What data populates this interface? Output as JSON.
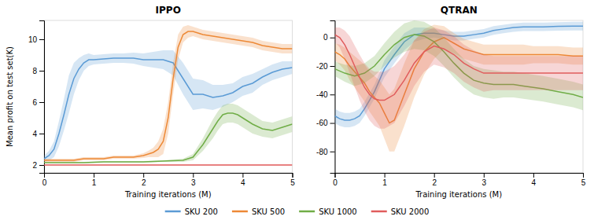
{
  "chart_data": [
    {
      "type": "line",
      "title": "IPPO",
      "xlabel": "Training iterations (M)",
      "ylabel": "Mean profit on test set(K)",
      "xlim": [
        0,
        5
      ],
      "xticks": [
        0,
        1,
        2,
        3,
        4,
        5
      ],
      "ylim": [
        1.5,
        11.2
      ],
      "yticks": [
        2,
        4,
        6,
        8,
        10
      ],
      "legend": "bottom",
      "series": [
        {
          "name": "SKU 200",
          "color": "#5b9bd5",
          "x": [
            0.0,
            0.1,
            0.2,
            0.3,
            0.4,
            0.5,
            0.6,
            0.7,
            0.8,
            0.9,
            1.0,
            1.2,
            1.4,
            1.6,
            1.8,
            2.0,
            2.2,
            2.4,
            2.5,
            2.6,
            2.7,
            2.8,
            2.9,
            3.0,
            3.2,
            3.4,
            3.6,
            3.8,
            4.0,
            4.2,
            4.4,
            4.6,
            4.8,
            5.0
          ],
          "values": [
            2.4,
            2.6,
            3.0,
            4.0,
            5.2,
            6.5,
            7.5,
            8.1,
            8.5,
            8.7,
            8.7,
            8.75,
            8.8,
            8.8,
            8.8,
            8.7,
            8.7,
            8.7,
            8.6,
            8.5,
            8.0,
            7.5,
            7.0,
            6.5,
            6.5,
            6.3,
            6.4,
            6.6,
            7.0,
            7.2,
            7.6,
            7.9,
            8.1,
            8.2
          ],
          "std": [
            0.2,
            0.3,
            0.5,
            0.8,
            1.0,
            1.2,
            1.0,
            0.7,
            0.5,
            0.4,
            0.3,
            0.3,
            0.3,
            0.3,
            0.35,
            0.4,
            0.5,
            0.6,
            0.7,
            0.8,
            0.9,
            1.0,
            1.0,
            1.0,
            0.9,
            0.8,
            0.7,
            0.6,
            0.6,
            0.6,
            0.5,
            0.5,
            0.5,
            0.4
          ]
        },
        {
          "name": "SKU 500",
          "color": "#ed8936",
          "x": [
            0.0,
            0.2,
            0.4,
            0.6,
            0.8,
            1.0,
            1.2,
            1.4,
            1.6,
            1.8,
            2.0,
            2.1,
            2.2,
            2.3,
            2.4,
            2.5,
            2.6,
            2.7,
            2.8,
            2.9,
            3.0,
            3.1,
            3.2,
            3.4,
            3.6,
            3.8,
            4.0,
            4.2,
            4.4,
            4.6,
            4.8,
            5.0
          ],
          "values": [
            2.3,
            2.3,
            2.3,
            2.3,
            2.4,
            2.4,
            2.4,
            2.5,
            2.5,
            2.5,
            2.6,
            2.7,
            2.8,
            3.0,
            3.5,
            5.0,
            7.5,
            9.5,
            10.3,
            10.5,
            10.5,
            10.4,
            10.3,
            10.2,
            10.1,
            10.0,
            9.9,
            9.8,
            9.6,
            9.5,
            9.4,
            9.4
          ],
          "std": [
            0.1,
            0.1,
            0.1,
            0.1,
            0.1,
            0.1,
            0.1,
            0.1,
            0.1,
            0.1,
            0.15,
            0.2,
            0.3,
            0.5,
            0.8,
            1.0,
            1.0,
            0.8,
            0.5,
            0.4,
            0.3,
            0.3,
            0.3,
            0.3,
            0.3,
            0.3,
            0.3,
            0.3,
            0.3,
            0.3,
            0.3,
            0.3
          ]
        },
        {
          "name": "SKU 1000",
          "color": "#70ad47",
          "x": [
            0.0,
            0.4,
            0.8,
            1.2,
            1.6,
            2.0,
            2.4,
            2.8,
            3.0,
            3.1,
            3.2,
            3.3,
            3.4,
            3.5,
            3.6,
            3.7,
            3.8,
            3.9,
            4.0,
            4.1,
            4.2,
            4.4,
            4.6,
            4.8,
            5.0
          ],
          "values": [
            2.15,
            2.15,
            2.15,
            2.2,
            2.2,
            2.2,
            2.25,
            2.3,
            2.5,
            2.9,
            3.3,
            3.8,
            4.3,
            4.8,
            5.2,
            5.3,
            5.3,
            5.2,
            5.0,
            4.8,
            4.6,
            4.3,
            4.2,
            4.4,
            4.6
          ],
          "std": [
            0.05,
            0.05,
            0.05,
            0.05,
            0.05,
            0.05,
            0.05,
            0.1,
            0.2,
            0.3,
            0.4,
            0.5,
            0.6,
            0.6,
            0.6,
            0.6,
            0.6,
            0.6,
            0.6,
            0.6,
            0.6,
            0.5,
            0.5,
            0.5,
            0.5
          ]
        },
        {
          "name": "SKU 2000",
          "color": "#e05c5c",
          "x": [
            0.0,
            2.5,
            5.0
          ],
          "values": [
            2.0,
            2.0,
            2.0
          ],
          "std": [
            0.01,
            0.01,
            0.01
          ]
        }
      ]
    },
    {
      "type": "line",
      "title": "QTRAN",
      "xlabel": "Training iterations (M)",
      "xlim": [
        0,
        5
      ],
      "xticks": [
        0,
        1,
        2,
        3,
        4,
        5
      ],
      "ylim": [
        -95,
        12
      ],
      "yticks": [
        -80,
        -60,
        -40,
        -20,
        0
      ],
      "series": [
        {
          "color": "#5b9bd5",
          "x": [
            0.0,
            0.1,
            0.2,
            0.3,
            0.4,
            0.5,
            0.6,
            0.7,
            0.8,
            0.9,
            1.0,
            1.2,
            1.4,
            1.6,
            1.8,
            2.0,
            2.2,
            2.4,
            2.6,
            2.8,
            3.0,
            3.2,
            3.4,
            3.6,
            3.8,
            4.0,
            4.2,
            4.5,
            4.8,
            5.0
          ],
          "values": [
            -55,
            -57,
            -58,
            -58,
            -57,
            -55,
            -50,
            -44,
            -38,
            -30,
            -22,
            -12,
            -3,
            2,
            3,
            3,
            2,
            1,
            1,
            2,
            3,
            5,
            6,
            7,
            7.5,
            7.5,
            7.5,
            7.8,
            8,
            8
          ],
          "std": [
            5,
            5,
            5,
            5,
            5,
            5,
            5,
            5,
            5,
            5,
            6,
            6,
            6,
            5,
            4,
            3,
            3,
            3,
            3,
            3,
            3,
            3,
            3,
            3,
            3,
            3,
            3,
            3,
            3,
            3
          ]
        },
        {
          "color": "#ed8936",
          "x": [
            0.0,
            0.1,
            0.2,
            0.3,
            0.5,
            0.6,
            0.7,
            0.8,
            0.9,
            1.0,
            1.1,
            1.2,
            1.4,
            1.6,
            1.8,
            2.0,
            2.2,
            2.4,
            2.6,
            2.8,
            3.0,
            3.2,
            3.5,
            3.8,
            4.0,
            4.2,
            4.5,
            4.8,
            5.0
          ],
          "values": [
            -10,
            -12,
            -15,
            -20,
            -28,
            -32,
            -38,
            -42,
            -46,
            -53,
            -60,
            -58,
            -40,
            -22,
            -10,
            -3,
            0,
            -4,
            -8,
            -10,
            -12,
            -12,
            -12,
            -12,
            -12,
            -12,
            -12,
            -13,
            -13
          ],
          "std": [
            6,
            7,
            8,
            10,
            12,
            13,
            14,
            15,
            16,
            18,
            20,
            22,
            22,
            20,
            16,
            12,
            8,
            7,
            7,
            7,
            7,
            7,
            7,
            7,
            6,
            6,
            6,
            6,
            6
          ]
        },
        {
          "color": "#70ad47",
          "x": [
            0.0,
            0.2,
            0.4,
            0.6,
            0.8,
            1.0,
            1.2,
            1.4,
            1.6,
            1.8,
            2.0,
            2.2,
            2.4,
            2.6,
            2.8,
            3.0,
            3.2,
            3.4,
            3.6,
            3.8,
            4.0,
            4.2,
            4.5,
            4.8,
            5.0
          ],
          "values": [
            -22,
            -25,
            -27,
            -25,
            -20,
            -12,
            -5,
            0,
            2,
            1,
            -3,
            -10,
            -18,
            -25,
            -30,
            -32,
            -33,
            -33,
            -33,
            -34,
            -35,
            -36,
            -38,
            -40,
            -42
          ],
          "std": [
            5,
            6,
            7,
            7,
            7,
            8,
            9,
            10,
            10,
            10,
            10,
            10,
            10,
            10,
            10,
            10,
            10,
            9,
            9,
            9,
            9,
            9,
            9,
            9,
            9
          ]
        },
        {
          "color": "#e05c5c",
          "x": [
            0.0,
            0.1,
            0.2,
            0.3,
            0.5,
            0.6,
            0.7,
            0.8,
            0.9,
            1.0,
            1.1,
            1.2,
            1.4,
            1.6,
            1.8,
            2.0,
            2.2,
            2.4,
            2.6,
            2.8,
            3.0,
            3.2,
            3.4,
            3.6,
            3.8,
            4.0,
            4.2,
            4.5,
            4.8,
            5.0
          ],
          "values": [
            2,
            0,
            -5,
            -12,
            -28,
            -35,
            -40,
            -43,
            -44,
            -44,
            -42,
            -40,
            -30,
            -18,
            -10,
            -6,
            -8,
            -12,
            -18,
            -22,
            -25,
            -25,
            -25,
            -25,
            -25,
            -25,
            -25,
            -25,
            -25,
            -25
          ],
          "std": [
            5,
            7,
            10,
            13,
            16,
            17,
            18,
            19,
            20,
            20,
            20,
            20,
            18,
            16,
            14,
            13,
            13,
            13,
            13,
            13,
            13,
            12,
            12,
            12,
            12,
            12,
            12,
            12,
            12,
            12
          ]
        }
      ]
    }
  ]
}
